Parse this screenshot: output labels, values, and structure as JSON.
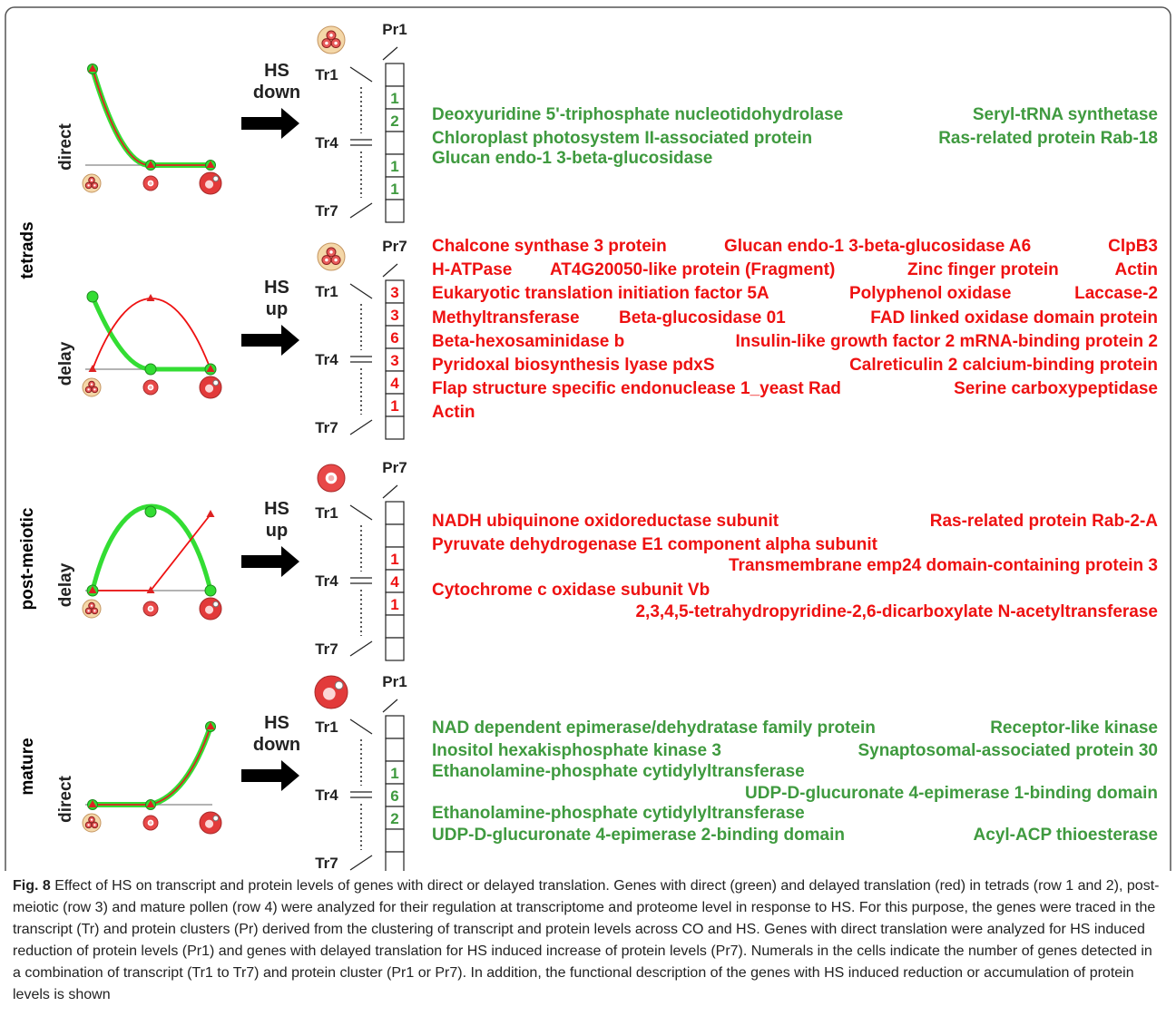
{
  "colors": {
    "direct": "#3f9a3f",
    "delay": "#ee1111",
    "green_line": "#33dd33",
    "arrow": "#000000"
  },
  "side_labels": {
    "tetrads": "tetrads",
    "post_meiotic": "post-meiotic",
    "mature": "mature"
  },
  "rows": [
    {
      "mode": "direct",
      "hs_label": [
        "HS",
        "down"
      ],
      "cell_stage_icon": "tetrad-cell-icon",
      "cluster_header": "Pr1",
      "tr_labels": [
        "Tr1",
        "Tr4",
        "Tr7"
      ],
      "cells": [
        "",
        "1",
        "2",
        "",
        "1",
        "1",
        ""
      ],
      "text_color": "green",
      "genes": [
        [
          "Deoxyuridine 5'-triphosphate nucleotidohydrolase",
          "Seryl-tRNA synthetase"
        ],
        [
          "Chloroplast photosystem II-associated protein",
          "Ras-related protein Rab-18"
        ],
        [
          "Glucan endo-1 3-beta-glucosidase"
        ]
      ]
    },
    {
      "mode": "delay",
      "hs_label": [
        "HS",
        "up"
      ],
      "cell_stage_icon": "tetrad-cell-icon",
      "cluster_header": "Pr7",
      "tr_labels": [
        "Tr1",
        "Tr4",
        "Tr7"
      ],
      "cells": [
        "3",
        "3",
        "6",
        "3",
        "4",
        "1",
        ""
      ],
      "text_color": "red",
      "genes": [
        [
          "Chalcone synthase 3 protein",
          "Glucan endo-1 3-beta-glucosidase A6",
          "ClpB3"
        ],
        [
          "H-ATPase",
          "AT4G20050-like protein (Fragment)",
          "Zinc finger protein",
          "Actin"
        ],
        [
          "Eukaryotic translation initiation factor 5A",
          "Polyphenol oxidase",
          "Laccase-2"
        ],
        [
          "Methyltransferase",
          "Beta-glucosidase 01",
          "FAD linked oxidase domain protein"
        ],
        [
          "Beta-hexosaminidase b",
          "Insulin-like growth factor 2 mRNA-binding protein 2"
        ],
        [
          "Pyridoxal biosynthesis lyase pdxS",
          "Calreticulin 2 calcium-binding protein"
        ],
        [
          "Flap structure specific endonuclease 1_yeast Rad",
          "Serine carboxypeptidase"
        ],
        [
          "Actin"
        ]
      ]
    },
    {
      "mode": "delay",
      "hs_label": [
        "HS",
        "up"
      ],
      "cell_stage_icon": "microspore-cell-icon",
      "cluster_header": "Pr7",
      "tr_labels": [
        "Tr1",
        "Tr4",
        "Tr7"
      ],
      "cells": [
        "",
        "",
        "1",
        "4",
        "1",
        "",
        ""
      ],
      "text_color": "red",
      "genes": [
        [
          "NADH ubiquinone oxidoreductase subunit",
          "Ras-related protein Rab-2-A"
        ],
        [
          "Pyruvate dehydrogenase E1 component alpha subunit"
        ],
        [
          "Transmembrane emp24 domain-containing protein 3"
        ],
        [
          "Cytochrome c oxidase subunit Vb"
        ],
        [
          "2,3,4,5-tetrahydropyridine-2,6-dicarboxylate N-acetyltransferase"
        ]
      ]
    },
    {
      "mode": "direct",
      "hs_label": [
        "HS",
        "down"
      ],
      "cell_stage_icon": "mature-pollen-icon",
      "cluster_header": "Pr1",
      "tr_labels": [
        "Tr1",
        "Tr4",
        "Tr7"
      ],
      "cells": [
        "",
        "",
        "1",
        "6",
        "2",
        "",
        ""
      ],
      "text_color": "green",
      "genes": [
        [
          "NAD dependent epimerase/dehydratase family protein",
          "Receptor-like kinase"
        ],
        [
          "Inositol hexakisphosphate kinase 3",
          "Synaptosomal-associated protein 30"
        ],
        [
          "Ethanolamine-phosphate cytidylyltransferase"
        ],
        [
          "UDP-D-glucuronate 4-epimerase 1-binding domain"
        ],
        [
          "Ethanolamine-phosphate cytidylyltransferase"
        ],
        [
          "UDP-D-glucuronate 4-epimerase 2-binding domain",
          "Acyl-ACP thioesterase"
        ]
      ]
    }
  ],
  "caption": {
    "label": "Fig. 8",
    "text": "Effect of HS on transcript and protein levels of genes with direct or delayed translation. Genes with direct (green) and delayed translation (red) in tetrads (row 1 and 2), post-meiotic (row 3) and mature pollen (row 4) were analyzed for their regulation at transcriptome and proteome level in response to HS. For this purpose, the genes were traced in the transcript (Tr) and protein clusters (Pr) derived from the clustering of transcript and protein levels across CO and HS. Genes with direct translation were analyzed for HS induced reduction of protein levels (Pr1) and genes with delayed translation for HS induced increase of protein levels (Pr7). Numerals in the cells indicate the number of genes detected in a combination of transcript (Tr1 to Tr7) and protein cluster (Pr1 or Pr7). In addition, the functional description of the genes with HS induced reduction or accumulation of protein levels is shown"
  }
}
